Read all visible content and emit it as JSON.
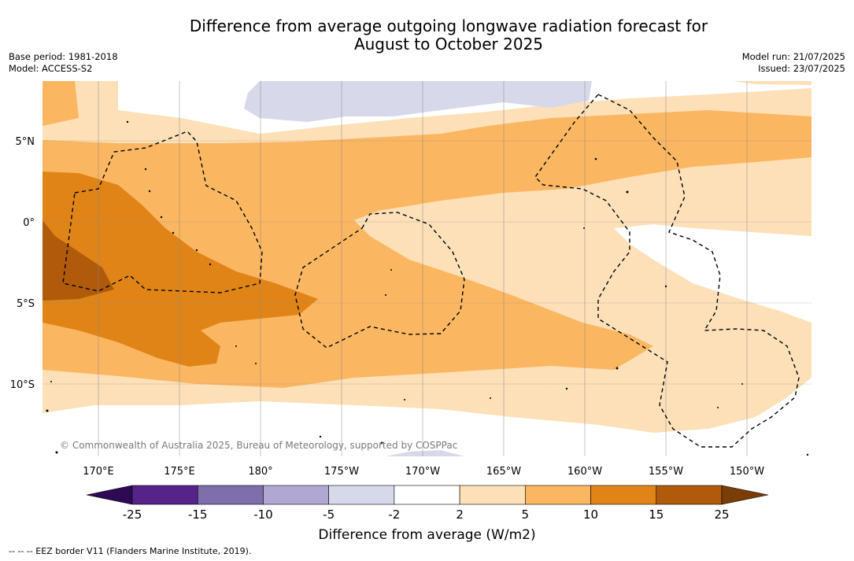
{
  "title": {
    "line1": "Difference from average outgoing longwave radiation forecast for",
    "line2": "August to October 2025"
  },
  "meta": {
    "base_period": "Base period: 1981-2018",
    "model": "Model: ACCESS-S2",
    "model_run": "Model run: 21/07/2025",
    "issued": "Issued: 23/07/2025"
  },
  "map": {
    "lon_labels": [
      "170°E",
      "175°E",
      "180°",
      "175°W",
      "170°W",
      "165°W",
      "160°W",
      "155°W",
      "150°W"
    ],
    "lat_labels": [
      "5°N",
      "0°",
      "5°S",
      "10°S"
    ],
    "copyright": "© Commonwealth of Australia 2025, Bureau of Meteorology, supported by COSPPac"
  },
  "colorbar": {
    "ticks": [
      "-25",
      "-15",
      "-10",
      "-5",
      "-2",
      "2",
      "5",
      "10",
      "15",
      "25"
    ],
    "colors": [
      "#55238a",
      "#7e6fac",
      "#b0a8d2",
      "#d7d8ea",
      "#ffffff",
      "#fde0b8",
      "#fbb661",
      "#e08418",
      "#b05a0c"
    ],
    "under_color": "#2e0a55",
    "over_color": "#7a3d05",
    "label": "Difference from average (W/m2)"
  },
  "legend": {
    "eez": "--  --  -- EEZ border V11 (Flanders Marine Institute, 2019)."
  }
}
